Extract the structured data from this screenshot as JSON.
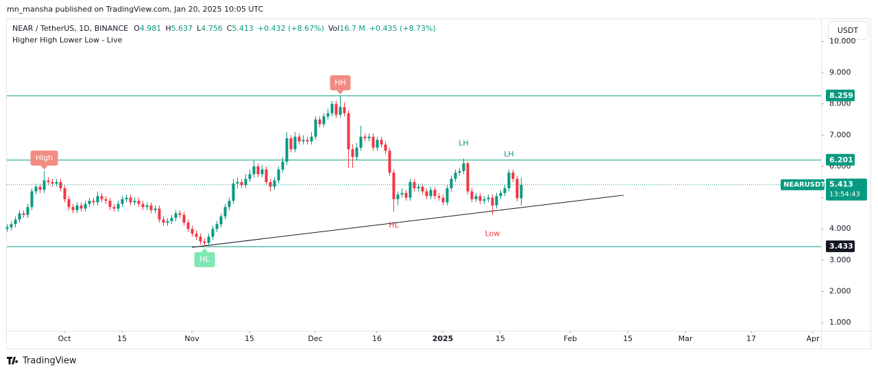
{
  "chart_data": {
    "type": "candlestick",
    "published": "mn_mansha published on TradingView.com, Jan 20, 2025 10:05 UTC",
    "symbol": "NEAR / TetherUS, 1D, BINANCE",
    "change": "+0.432 (+8.67%)",
    "volume_label": "Vol",
    "volume": "16.7 M",
    "volume_change": "+0.435 (+8.73%)",
    "indicator": "Higher High Lower Low - Live",
    "currency": "USDT",
    "ticker": "NEARUSDT",
    "countdown": "13:54:43",
    "brand": "TradingView",
    "ohlc_labels": [
      "O",
      "H",
      "L",
      "C"
    ],
    "up_color": "#089981",
    "down_color": "#f23645",
    "level_color": "#089981",
    "candles": [
      [
        4.0,
        4.15,
        3.9,
        4.05
      ],
      [
        4.05,
        4.25,
        3.95,
        4.15
      ],
      [
        4.15,
        4.4,
        4.05,
        4.3
      ],
      [
        4.3,
        4.6,
        4.2,
        4.5
      ],
      [
        4.5,
        4.6,
        4.35,
        4.45
      ],
      [
        4.45,
        4.8,
        4.35,
        4.7
      ],
      [
        4.7,
        5.3,
        4.6,
        5.2
      ],
      [
        5.2,
        5.45,
        5.1,
        5.35
      ],
      [
        5.35,
        5.45,
        5.15,
        5.25
      ],
      [
        5.25,
        5.85,
        5.15,
        5.55
      ],
      [
        5.55,
        5.65,
        5.4,
        5.5
      ],
      [
        5.5,
        5.6,
        5.35,
        5.45
      ],
      [
        5.45,
        5.6,
        5.35,
        5.5
      ],
      [
        5.5,
        5.6,
        5.2,
        5.3
      ],
      [
        5.3,
        5.4,
        4.85,
        4.95
      ],
      [
        4.95,
        5.05,
        4.6,
        4.7
      ],
      [
        4.7,
        4.8,
        4.5,
        4.6
      ],
      [
        4.6,
        4.85,
        4.5,
        4.75
      ],
      [
        4.75,
        4.85,
        4.55,
        4.65
      ],
      [
        4.65,
        4.9,
        4.55,
        4.8
      ],
      [
        4.8,
        5.0,
        4.7,
        4.9
      ],
      [
        4.9,
        5.0,
        4.75,
        4.85
      ],
      [
        4.85,
        5.2,
        4.75,
        5.05
      ],
      [
        5.05,
        5.15,
        4.85,
        4.95
      ],
      [
        4.95,
        5.05,
        4.8,
        4.9
      ],
      [
        4.9,
        5.0,
        4.6,
        4.7
      ],
      [
        4.7,
        4.8,
        4.55,
        4.65
      ],
      [
        4.65,
        4.9,
        4.55,
        4.8
      ],
      [
        4.8,
        5.05,
        4.7,
        4.95
      ],
      [
        4.95,
        5.1,
        4.85,
        5.0
      ],
      [
        5.0,
        5.1,
        4.75,
        4.85
      ],
      [
        4.85,
        5.0,
        4.75,
        4.9
      ],
      [
        4.9,
        5.0,
        4.7,
        4.8
      ],
      [
        4.8,
        4.9,
        4.6,
        4.7
      ],
      [
        4.7,
        4.85,
        4.6,
        4.75
      ],
      [
        4.75,
        4.85,
        4.5,
        4.6
      ],
      [
        4.6,
        4.75,
        4.5,
        4.65
      ],
      [
        4.65,
        4.75,
        4.2,
        4.3
      ],
      [
        4.3,
        4.4,
        4.1,
        4.2
      ],
      [
        4.2,
        4.35,
        4.1,
        4.25
      ],
      [
        4.25,
        4.45,
        4.15,
        4.35
      ],
      [
        4.35,
        4.6,
        4.25,
        4.5
      ],
      [
        4.5,
        4.6,
        4.35,
        4.45
      ],
      [
        4.45,
        4.55,
        4.1,
        4.2
      ],
      [
        4.2,
        4.3,
        3.9,
        4.0
      ],
      [
        4.0,
        4.1,
        3.75,
        3.85
      ],
      [
        3.85,
        3.95,
        3.65,
        3.75
      ],
      [
        3.75,
        3.85,
        3.5,
        3.6
      ],
      [
        3.6,
        3.7,
        3.433,
        3.55
      ],
      [
        3.55,
        3.85,
        3.45,
        3.75
      ],
      [
        3.75,
        4.1,
        3.65,
        4.0
      ],
      [
        4.0,
        4.25,
        3.9,
        4.15
      ],
      [
        4.15,
        4.5,
        4.05,
        4.4
      ],
      [
        4.4,
        4.8,
        4.3,
        4.7
      ],
      [
        4.7,
        5.0,
        4.6,
        4.9
      ],
      [
        4.9,
        5.6,
        4.8,
        5.45
      ],
      [
        5.45,
        5.65,
        5.3,
        5.5
      ],
      [
        5.5,
        5.6,
        5.3,
        5.4
      ],
      [
        5.4,
        5.75,
        5.3,
        5.6
      ],
      [
        5.6,
        5.9,
        5.5,
        5.75
      ],
      [
        5.75,
        6.2,
        5.65,
        6.0
      ],
      [
        6.0,
        6.1,
        5.65,
        5.75
      ],
      [
        5.75,
        6.05,
        5.65,
        5.9
      ],
      [
        5.9,
        6.0,
        5.4,
        5.5
      ],
      [
        5.5,
        5.6,
        5.2,
        5.35
      ],
      [
        5.35,
        5.65,
        5.25,
        5.55
      ],
      [
        5.55,
        6.0,
        5.45,
        5.9
      ],
      [
        5.9,
        6.3,
        5.8,
        6.15
      ],
      [
        6.15,
        7.1,
        6.05,
        6.9
      ],
      [
        6.9,
        7.0,
        6.45,
        6.55
      ],
      [
        6.55,
        7.1,
        6.45,
        6.95
      ],
      [
        6.95,
        7.05,
        6.7,
        6.8
      ],
      [
        6.8,
        7.0,
        6.7,
        6.85
      ],
      [
        6.85,
        6.95,
        6.7,
        6.8
      ],
      [
        6.8,
        7.1,
        6.7,
        6.95
      ],
      [
        6.95,
        7.6,
        6.85,
        7.5
      ],
      [
        7.5,
        7.6,
        7.25,
        7.35
      ],
      [
        7.35,
        7.7,
        7.25,
        7.6
      ],
      [
        7.6,
        7.85,
        7.5,
        7.7
      ],
      [
        7.7,
        8.1,
        7.6,
        8.0
      ],
      [
        8.0,
        8.1,
        7.55,
        7.65
      ],
      [
        7.65,
        8.259,
        7.55,
        7.9
      ],
      [
        7.9,
        8.05,
        7.6,
        7.7
      ],
      [
        7.7,
        7.8,
        5.95,
        6.55
      ],
      [
        6.55,
        6.7,
        5.95,
        6.3
      ],
      [
        6.3,
        6.75,
        6.2,
        6.6
      ],
      [
        6.6,
        7.3,
        6.5,
        6.95
      ],
      [
        6.95,
        7.05,
        6.8,
        6.9
      ],
      [
        6.9,
        7.05,
        6.8,
        6.95
      ],
      [
        6.95,
        7.05,
        6.5,
        6.6
      ],
      [
        6.6,
        6.95,
        6.5,
        6.85
      ],
      [
        6.85,
        6.95,
        6.6,
        6.7
      ],
      [
        6.7,
        6.8,
        6.4,
        6.5
      ],
      [
        6.5,
        6.6,
        5.7,
        5.8
      ],
      [
        5.8,
        5.9,
        4.55,
        4.95
      ],
      [
        4.95,
        5.2,
        4.75,
        5.1
      ],
      [
        5.1,
        5.3,
        5.0,
        5.15
      ],
      [
        5.15,
        5.25,
        4.9,
        5.0
      ],
      [
        5.0,
        5.6,
        4.9,
        5.5
      ],
      [
        5.5,
        5.6,
        5.2,
        5.3
      ],
      [
        5.3,
        5.45,
        5.2,
        5.35
      ],
      [
        5.35,
        5.45,
        5.1,
        5.2
      ],
      [
        5.2,
        5.3,
        4.95,
        5.05
      ],
      [
        5.05,
        5.35,
        4.95,
        5.25
      ],
      [
        5.25,
        5.35,
        4.95,
        5.05
      ],
      [
        5.05,
        5.15,
        4.9,
        5.0
      ],
      [
        5.0,
        5.1,
        4.75,
        4.85
      ],
      [
        4.85,
        5.4,
        4.75,
        5.3
      ],
      [
        5.3,
        5.7,
        5.2,
        5.6
      ],
      [
        5.6,
        5.9,
        5.5,
        5.8
      ],
      [
        5.8,
        5.95,
        5.7,
        5.85
      ],
      [
        5.85,
        6.25,
        5.75,
        6.1
      ],
      [
        6.1,
        6.15,
        5.1,
        5.2
      ],
      [
        5.2,
        5.3,
        4.85,
        4.95
      ],
      [
        4.95,
        5.15,
        4.85,
        5.05
      ],
      [
        5.05,
        5.15,
        4.8,
        4.9
      ],
      [
        4.9,
        5.05,
        4.8,
        4.95
      ],
      [
        4.95,
        5.1,
        4.85,
        5.0
      ],
      [
        5.0,
        5.1,
        4.45,
        4.75
      ],
      [
        4.75,
        5.15,
        4.65,
        5.05
      ],
      [
        5.05,
        5.25,
        4.95,
        5.15
      ],
      [
        5.15,
        5.4,
        5.05,
        5.3
      ],
      [
        5.3,
        5.9,
        5.2,
        5.8
      ],
      [
        5.8,
        5.9,
        5.5,
        5.6
      ],
      [
        5.6,
        5.7,
        4.88,
        4.98
      ],
      [
        4.981,
        5.637,
        4.756,
        5.413
      ]
    ],
    "levels": [
      8.259,
      6.201,
      3.433
    ],
    "trendline": [
      [
        45,
        3.41
      ],
      [
        150,
        5.08
      ]
    ],
    "annotations": [
      "High",
      "HH",
      "HL",
      "LH",
      "LH",
      "HL",
      "Low"
    ],
    "xlim": [
      0,
      198
    ],
    "xticks": [
      {
        "value": 14,
        "label": "Oct"
      },
      {
        "value": 28,
        "label": "15"
      },
      {
        "value": 45,
        "label": "Nov"
      },
      {
        "value": 59,
        "label": "15"
      },
      {
        "value": 75,
        "label": "Dec"
      },
      {
        "value": 90,
        "label": "16"
      },
      {
        "value": 106,
        "label": "2025"
      },
      {
        "value": 120,
        "label": "15"
      },
      {
        "value": 137,
        "label": "Feb"
      },
      {
        "value": 151,
        "label": "15"
      },
      {
        "value": 165,
        "label": "Mar"
      },
      {
        "value": 181,
        "label": "17"
      },
      {
        "value": 196,
        "label": "Apr"
      }
    ],
    "ylim": [
      0.74,
      10.71
    ],
    "yticks": [
      {
        "value": 1,
        "label": "1.000"
      },
      {
        "value": 2,
        "label": "2.000"
      },
      {
        "value": 3,
        "label": "3.000"
      },
      {
        "value": 4,
        "label": "4.000"
      },
      {
        "value": 5,
        "label": "5.000"
      },
      {
        "value": 6,
        "label": "6.000"
      },
      {
        "value": 7,
        "label": "7.000"
      },
      {
        "value": 8,
        "label": "8.000"
      },
      {
        "value": 9,
        "label": "9.000"
      },
      {
        "value": 10,
        "label": "10.000"
      }
    ]
  }
}
